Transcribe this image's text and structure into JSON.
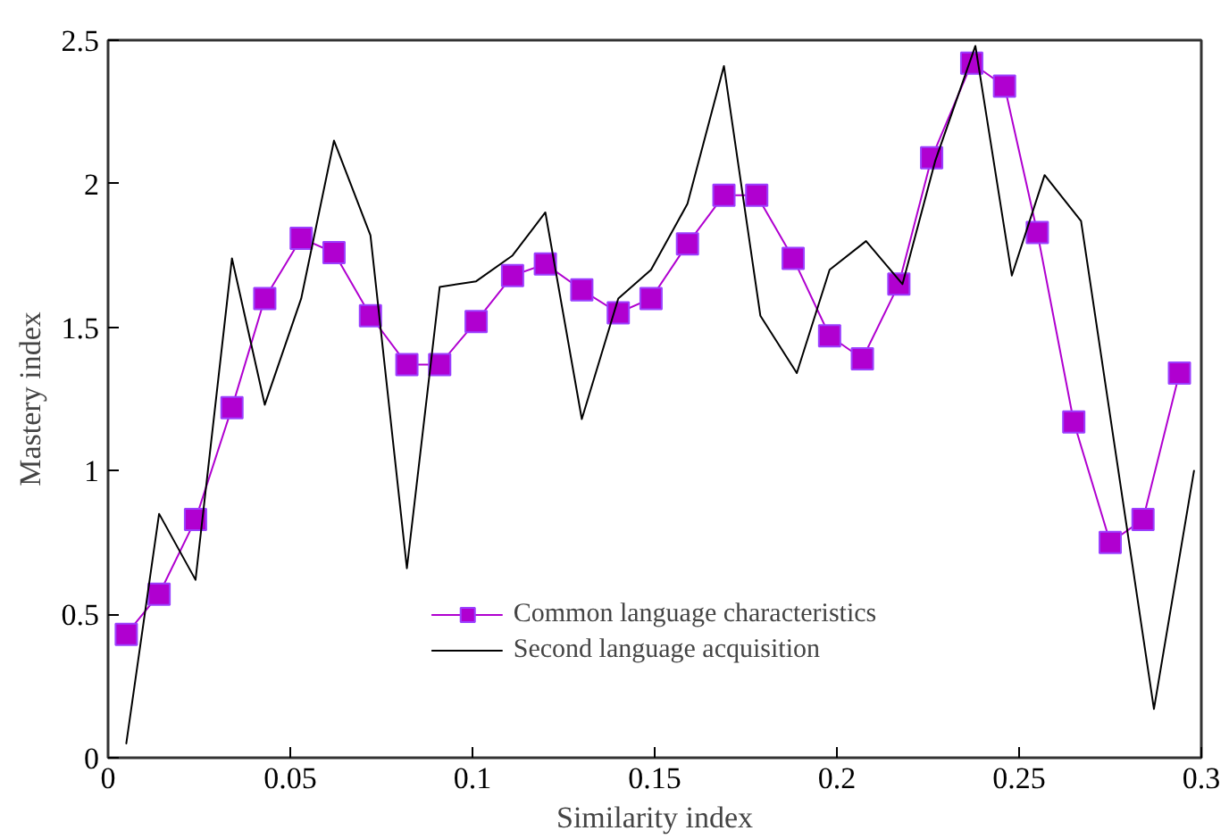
{
  "chart_data": {
    "type": "line",
    "xlabel": "Similarity index",
    "ylabel": "Mastery index",
    "xlim": [
      0,
      0.3
    ],
    "ylim": [
      0,
      2.5
    ],
    "xticks": [
      0,
      0.05,
      0.1,
      0.15,
      0.2,
      0.25,
      0.3
    ],
    "yticks": [
      0,
      0.5,
      1,
      1.5,
      2,
      2.5
    ],
    "grid": false,
    "legend": "bottom",
    "series": [
      {
        "name": "Common language characteristics",
        "color": "#b000d0",
        "marker": "square",
        "x": [
          0.005,
          0.014,
          0.024,
          0.034,
          0.043,
          0.053,
          0.062,
          0.072,
          0.082,
          0.091,
          0.101,
          0.111,
          0.12,
          0.13,
          0.14,
          0.149,
          0.159,
          0.169,
          0.178,
          0.188,
          0.198,
          0.207,
          0.217,
          0.226,
          0.237,
          0.246,
          0.255,
          0.265,
          0.275,
          0.284,
          0.294
        ],
        "values": [
          0.43,
          0.57,
          0.83,
          1.22,
          1.6,
          1.81,
          1.76,
          1.54,
          1.37,
          1.37,
          1.52,
          1.68,
          1.72,
          1.63,
          1.55,
          1.6,
          1.79,
          1.96,
          1.96,
          1.74,
          1.47,
          1.39,
          1.65,
          2.09,
          2.42,
          2.34,
          1.83,
          1.17,
          0.75,
          0.83,
          1.34
        ]
      },
      {
        "name": "Second language acquisition",
        "color": "#000000",
        "marker": "none",
        "x": [
          0.005,
          0.014,
          0.024,
          0.034,
          0.043,
          0.053,
          0.062,
          0.072,
          0.082,
          0.091,
          0.101,
          0.111,
          0.12,
          0.13,
          0.14,
          0.149,
          0.159,
          0.169,
          0.179,
          0.189,
          0.198,
          0.208,
          0.218,
          0.227,
          0.238,
          0.248,
          0.257,
          0.267,
          0.287,
          0.298
        ],
        "values": [
          0.05,
          0.85,
          0.62,
          1.74,
          1.23,
          1.6,
          2.15,
          1.82,
          0.66,
          1.64,
          1.66,
          1.75,
          1.9,
          1.18,
          1.6,
          1.7,
          1.93,
          2.41,
          1.54,
          1.34,
          1.7,
          1.8,
          1.65,
          2.08,
          2.48,
          1.68,
          2.03,
          1.87,
          0.17,
          1.0
        ]
      }
    ]
  }
}
